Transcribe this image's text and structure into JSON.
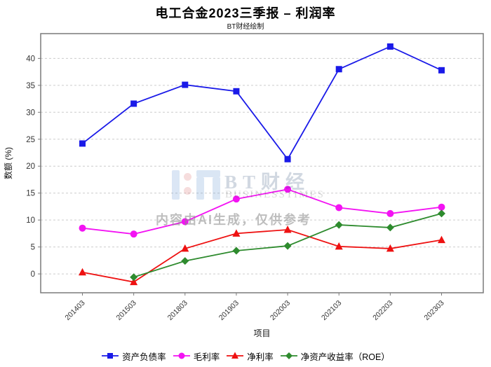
{
  "chart_data": {
    "type": "line",
    "title": "电工合金2023三季报 – 利润率",
    "subtitle": "BT财经绘制",
    "xlabel": "项目",
    "ylabel": "数额 (%)",
    "categories": [
      "201403",
      "201503",
      "201803",
      "201903",
      "202003",
      "202103",
      "202203",
      "202303"
    ],
    "series": [
      {
        "name": "资产负债率",
        "marker": "square",
        "color": "#1a1ae8",
        "values": [
          24.2,
          31.6,
          35.1,
          33.9,
          21.3,
          38.0,
          42.2,
          37.8
        ]
      },
      {
        "name": "毛利率",
        "marker": "circle",
        "color": "#f313f3",
        "values": [
          8.5,
          7.4,
          9.7,
          13.9,
          15.7,
          12.3,
          11.2,
          12.4
        ]
      },
      {
        "name": "净利率",
        "marker": "triangle",
        "color": "#ee1111",
        "values": [
          0.3,
          -1.5,
          4.7,
          7.5,
          8.2,
          5.1,
          4.7,
          6.3
        ]
      },
      {
        "name": "净资产收益率（ROE）",
        "marker": "diamond",
        "color": "#2e8b2e",
        "values": [
          null,
          -0.6,
          2.4,
          4.3,
          5.2,
          9.1,
          8.6,
          11.2
        ]
      }
    ],
    "ylim": [
      -3.5,
      44.6
    ],
    "yticks": [
      0,
      5,
      10,
      15,
      20,
      25,
      30,
      35,
      40
    ],
    "grid": true,
    "grid_style": "dashed",
    "legend_position": "bottom"
  },
  "watermark": {
    "logo_text": "BT财经",
    "logo_subtext": "BUSINESSTIMES",
    "ai_note": "内容由AI生成，仅供参考"
  },
  "colors": {
    "grid": "#cccccc",
    "border": "#7a7a7a",
    "tick_text": "#333333",
    "axis_label": "#111111"
  }
}
